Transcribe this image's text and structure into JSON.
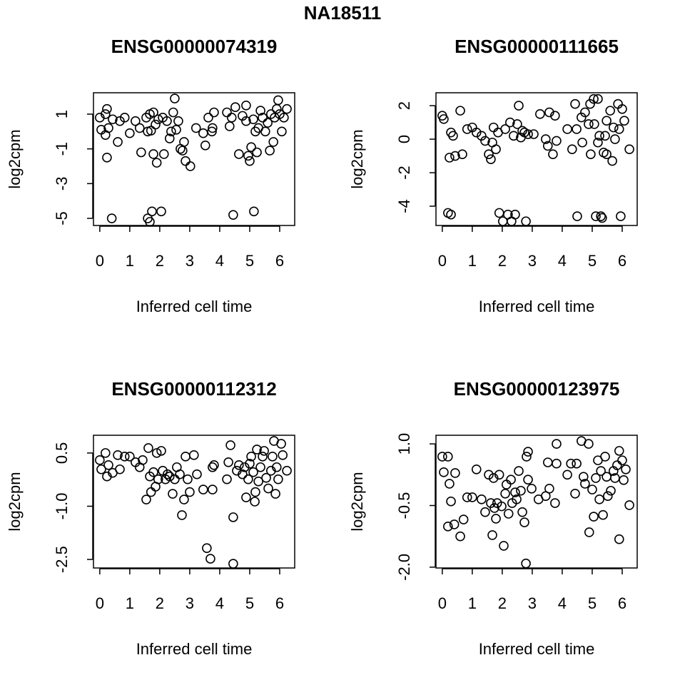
{
  "title": "NA18511",
  "chart_data": [
    {
      "type": "scatter",
      "title": "ENSG00000074319",
      "xlabel": "Inferred cell time",
      "ylabel": "log2cpm",
      "xlim": [
        -0.21,
        6.5
      ],
      "ylim": [
        -5.41,
        2.23
      ],
      "xticks": [
        0,
        1,
        2,
        3,
        4,
        5,
        6
      ],
      "yticks": [
        -5,
        -3,
        -1,
        1
      ],
      "x": [
        0,
        0.05,
        0.19,
        0.24,
        0.19,
        0.29,
        0.24,
        0.4,
        0.43,
        0.6,
        0.67,
        0.83,
        1.0,
        1.19,
        1.33,
        1.38,
        1.55,
        1.6,
        1.67,
        1.71,
        1.79,
        1.86,
        1.79,
        1.9,
        1.95,
        2.1,
        2.14,
        2.24,
        2.33,
        2.38,
        2.45,
        2.5,
        2.55,
        2.62,
        2.69,
        2.76,
        2.81,
        2.86,
        3.02,
        3.21,
        3.45,
        3.52,
        3.62,
        3.74,
        3.81,
        3.76,
        4.24,
        4.33,
        4.4,
        4.45,
        4.52,
        4.64,
        4.76,
        4.88,
        4.88,
        4.95,
        5.0,
        5.05,
        5.12,
        5.14,
        5.19,
        5.24,
        5.29,
        5.36,
        5.43,
        5.52,
        5.6,
        5.67,
        5.71,
        5.79,
        5.83,
        5.9,
        5.95,
        6.0,
        6.07,
        6.14,
        6.24,
        1.6,
        1.67,
        1.74,
        2.05
      ],
      "y": [
        0.8,
        0.1,
        1.0,
        1.3,
        -0.2,
        0.2,
        -1.5,
        -5.0,
        0.7,
        -0.6,
        0.6,
        0.8,
        -0.1,
        0.6,
        0.2,
        -1.2,
        0.8,
        0,
        1.0,
        0.05,
        1.1,
        0.4,
        -1.3,
        -1.8,
        0.7,
        0.8,
        -1.3,
        0.6,
        -0.4,
        0,
        1.1,
        1.9,
        0.1,
        0.6,
        -1.0,
        -1.1,
        -0.6,
        -1.7,
        -2.0,
        0.2,
        -0.1,
        -0.8,
        0.8,
        0,
        1.1,
        0.2,
        1.1,
        0.3,
        0.8,
        -4.8,
        1.4,
        -1.3,
        0.9,
        1.5,
        0.6,
        -1.4,
        -1.7,
        -0.9,
        0.7,
        -4.6,
        0,
        -1.2,
        0.2,
        1.2,
        0.8,
        0,
        0.5,
        -1.1,
        1.0,
        -0.6,
        0.8,
        1.3,
        1.8,
        1.0,
        0,
        0.8,
        1.3,
        -5.0,
        -5.2,
        -4.6,
        -4.6
      ]
    },
    {
      "type": "scatter",
      "title": "ENSG00000111665",
      "xlabel": "Inferred cell time",
      "ylabel": "log2cpm",
      "xlim": [
        -0.21,
        6.5
      ],
      "ylim": [
        -5.15,
        2.77
      ],
      "xticks": [
        0,
        1,
        2,
        3,
        4,
        5,
        6
      ],
      "yticks": [
        -4,
        -2,
        0,
        2
      ],
      "x": [
        0,
        0.05,
        0.19,
        0.29,
        0.24,
        0.29,
        0.36,
        0.43,
        0.6,
        0.67,
        0.83,
        1.0,
        1.14,
        1.31,
        1.43,
        1.55,
        1.62,
        1.67,
        1.71,
        1.79,
        1.86,
        1.9,
        2.02,
        2.1,
        2.19,
        2.26,
        2.31,
        2.38,
        2.43,
        2.5,
        2.55,
        2.62,
        2.67,
        2.74,
        2.79,
        2.86,
        3.05,
        3.26,
        3.45,
        3.52,
        3.57,
        3.69,
        3.76,
        3.81,
        4.17,
        4.33,
        4.43,
        4.48,
        4.5,
        4.64,
        4.76,
        4.88,
        4.93,
        4.95,
        5.05,
        5.07,
        5.12,
        5.19,
        5.19,
        5.24,
        5.29,
        5.33,
        5.38,
        5.43,
        5.48,
        5.6,
        5.67,
        5.71,
        5.76,
        5.86,
        5.9,
        5.95,
        6.0,
        6.07,
        6.24,
        4.67,
        5.48
      ],
      "y": [
        1.4,
        1.2,
        -4.4,
        -4.5,
        -1.1,
        0.4,
        0.2,
        -1.0,
        1.7,
        -0.9,
        0.6,
        0.7,
        0.4,
        0.2,
        -0.1,
        -0.9,
        -1.2,
        -0.2,
        0.7,
        -0.6,
        0.4,
        -4.4,
        -4.9,
        0.6,
        -4.5,
        1.0,
        -4.9,
        0.2,
        -4.5,
        0.9,
        2.0,
        0.1,
        0.5,
        0.4,
        -4.9,
        0.3,
        0.3,
        1.5,
        0,
        -0.4,
        1.6,
        -0.9,
        1.4,
        -0.1,
        0.6,
        -0.6,
        2.1,
        0.6,
        -4.6,
        1.3,
        1.6,
        0.9,
        2.1,
        -0.9,
        2.4,
        0.9,
        -4.6,
        -0.2,
        2.4,
        0.2,
        -4.6,
        -4.7,
        -0.8,
        0.2,
        1.1,
        1.7,
        -1.3,
        0.7,
        0,
        2.1,
        0.6,
        -4.6,
        1.8,
        1.1,
        -0.6,
        -0.2,
        -0.9
      ]
    },
    {
      "type": "scatter",
      "title": "ENSG00000112312",
      "xlabel": "Inferred cell time",
      "ylabel": "log2cpm",
      "xlim": [
        -0.21,
        6.5
      ],
      "ylim": [
        -2.74,
        1.0
      ],
      "xticks": [
        0,
        1,
        2,
        3,
        4,
        5,
        6
      ],
      "yticks": [
        -2.5,
        {
          "value": -1,
          "label": "-1.0"
        },
        0.5
      ],
      "x": [
        0,
        0.05,
        0.19,
        0.24,
        0.29,
        0.43,
        0.6,
        0.67,
        0.83,
        1.0,
        1.19,
        1.33,
        1.43,
        1.55,
        1.62,
        1.67,
        1.71,
        1.79,
        1.86,
        1.9,
        1.95,
        2.05,
        2.1,
        2.19,
        2.26,
        2.33,
        2.43,
        2.5,
        2.57,
        2.67,
        2.74,
        2.81,
        2.86,
        2.93,
        3.0,
        3.14,
        3.24,
        3.45,
        3.57,
        3.69,
        3.76,
        3.81,
        3.76,
        4.24,
        4.29,
        4.36,
        4.45,
        4.45,
        4.57,
        4.64,
        4.76,
        4.83,
        4.88,
        4.95,
        5.0,
        5.05,
        5.12,
        5.17,
        5.19,
        5.24,
        5.29,
        5.36,
        5.43,
        5.48,
        5.55,
        5.62,
        5.71,
        5.76,
        5.81,
        5.86,
        5.9,
        5.95,
        6.05,
        6.1,
        6.24
      ],
      "y": [
        0.3,
        0.04,
        0.5,
        -0.16,
        0.16,
        -0.06,
        0.44,
        0.04,
        0.4,
        0.4,
        0.24,
        0.1,
        0.3,
        -0.81,
        0.64,
        -0.16,
        -0.6,
        -0.04,
        -0.45,
        0.5,
        -0.24,
        0.56,
        0,
        -0.24,
        -0.1,
        -0.16,
        -0.65,
        -0.24,
        0.1,
        -0.1,
        -1.25,
        -0.81,
        0.4,
        -0.24,
        -0.6,
        0.44,
        -0.1,
        -0.53,
        -2.18,
        -2.48,
        0.1,
        0.16,
        -0.53,
        -0.24,
        0.24,
        0.72,
        -1.31,
        -2.62,
        0,
        0.16,
        -0.1,
        0.1,
        -0.75,
        -0.24,
        0.2,
        0.4,
        -0.04,
        -0.87,
        -0.6,
        0.6,
        -0.3,
        0.1,
        0.4,
        0.56,
        -0.2,
        -0.5,
        0,
        0.4,
        0.84,
        -0.65,
        0.1,
        -0.24,
        0.76,
        0.44,
        0
      ]
    },
    {
      "type": "scatter",
      "title": "ENSG00000123975",
      "xlabel": "Inferred cell time",
      "ylabel": "log2cpm",
      "xlim": [
        -0.21,
        6.5
      ],
      "ylim": [
        -2.02,
        1.21
      ],
      "xticks": [
        0,
        1,
        2,
        3,
        4,
        5,
        6
      ],
      "yticks": [
        {
          "value": -2,
          "label": "-2.0"
        },
        -0.5,
        {
          "value": 1,
          "label": "1.0"
        }
      ],
      "x": [
        0,
        0.05,
        0.19,
        0.19,
        0.24,
        0.29,
        0.4,
        0.43,
        0.6,
        0.71,
        0.83,
        1.0,
        1.14,
        1.31,
        1.43,
        1.55,
        1.62,
        1.67,
        1.71,
        1.74,
        1.79,
        1.83,
        1.9,
        1.98,
        2.05,
        2.1,
        2.14,
        2.21,
        2.29,
        2.33,
        2.43,
        2.48,
        2.55,
        2.62,
        2.67,
        2.74,
        2.79,
        2.81,
        2.86,
        2.86,
        2.98,
        3.21,
        3.45,
        3.52,
        3.57,
        3.76,
        3.81,
        3.81,
        4.17,
        4.29,
        4.43,
        4.48,
        4.64,
        4.71,
        4.76,
        4.88,
        4.9,
        5.0,
        5.05,
        5.12,
        5.19,
        5.24,
        5.29,
        5.36,
        5.43,
        5.48,
        5.52,
        5.62,
        5.71,
        5.76,
        5.83,
        5.9,
        5.9,
        6.0,
        6.05,
        6.12,
        6.24
      ],
      "y": [
        0.69,
        0.31,
        0.69,
        -1.01,
        0.03,
        -0.4,
        -0.96,
        0.29,
        -1.25,
        -0.84,
        -0.3,
        -0.3,
        0.38,
        -0.35,
        -0.66,
        0.25,
        -0.44,
        -1.22,
        0.17,
        -0.56,
        -0.82,
        -0.44,
        0.25,
        -0.52,
        -1.48,
        -0.21,
        0.01,
        -0.7,
        0.13,
        -0.44,
        -0.18,
        -0.35,
        0.34,
        -0.14,
        -0.66,
        -0.91,
        -1.91,
        0.69,
        0.81,
        0.13,
        -0.09,
        -0.35,
        -0.27,
        0.55,
        -0.09,
        -0.44,
        1.0,
        0.52,
        0.25,
        0.52,
        -0.21,
        0.52,
        1.07,
        0.2,
        0.03,
        1.0,
        -1.15,
        -0.11,
        -0.77,
        0.17,
        0.6,
        -0.35,
        0.34,
        -0.73,
        0.69,
        0.2,
        -0.27,
        -0.14,
        0.34,
        0.17,
        0.48,
        0.83,
        -1.32,
        0.6,
        0.12,
        0.38,
        -0.49
      ]
    }
  ]
}
